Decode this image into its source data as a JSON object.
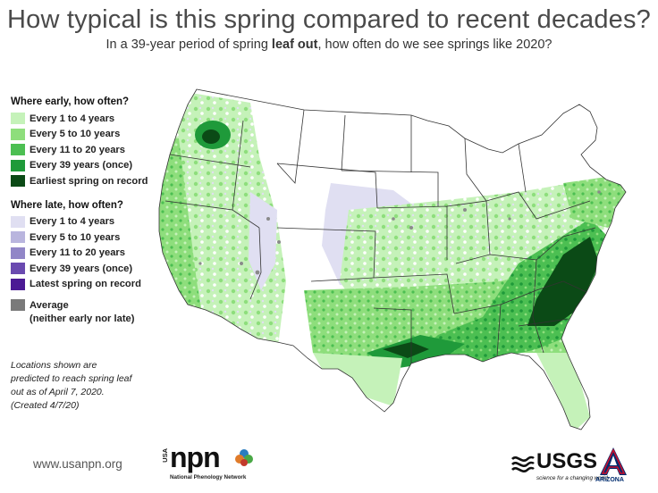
{
  "header": {
    "title": "How typical is this spring compared to recent decades?",
    "subtitle_prefix": "In a 39-year period of spring ",
    "subtitle_bold": "leaf out",
    "subtitle_suffix": ", how often do we see springs like 2020?"
  },
  "legend": {
    "early_heading": "Where early, how often?",
    "early_items": [
      {
        "label": "Every 1 to 4 years",
        "color": "#c5f2b9"
      },
      {
        "label": "Every 5 to 10 years",
        "color": "#8ede7c"
      },
      {
        "label": "Every 11 to 20 years",
        "color": "#4cbf52"
      },
      {
        "label": "Every 39 years (once)",
        "color": "#1f9a3a"
      },
      {
        "label": "Earliest spring on record",
        "color": "#0b4a16"
      }
    ],
    "late_heading": "Where late, how often?",
    "late_items": [
      {
        "label": "Every 1 to 4 years",
        "color": "#e0dff2"
      },
      {
        "label": "Every 5 to 10 years",
        "color": "#b9b5de"
      },
      {
        "label": "Every 11 to 20 years",
        "color": "#9186c7"
      },
      {
        "label": "Every 39 years (once)",
        "color": "#6a4ab0"
      },
      {
        "label": "Latest spring on record",
        "color": "#4b1a94"
      }
    ],
    "average": {
      "line1": "Average",
      "line2": "(neither early nor late)",
      "color": "#7a7a7a"
    }
  },
  "note": [
    "Locations shown are",
    "predicted to reach spring leaf",
    "out as of April 7, 2020.",
    "(Created 4/7/20)"
  ],
  "footer": {
    "url": "www.usanpn.org",
    "npn_word": "npn",
    "npn_vertical": "USA",
    "npn_sub": "National Phenology Network",
    "usgs_word": "USGS",
    "usgs_tag": "science for a changing world",
    "ua_name": "ARIZONA"
  },
  "map_colors": {
    "state_fill": "#ffffff",
    "state_border": "#333333"
  }
}
